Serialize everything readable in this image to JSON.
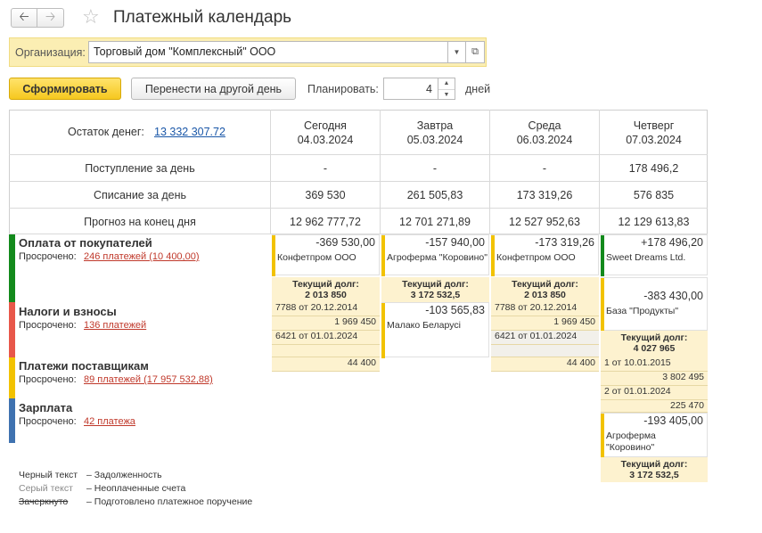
{
  "header": {
    "title": "Платежный календарь",
    "back_icon": "arrow-left-icon",
    "forward_icon": "arrow-right-icon",
    "favorite_icon": "star-icon"
  },
  "organization": {
    "label": "Организация:",
    "value": "Торговый дом \"Комплексный\" ООО"
  },
  "toolbar": {
    "generate_label": "Сформировать",
    "move_label": "Перенести на другой день",
    "plan_label": "Планировать:",
    "plan_value": "4",
    "days_label": "дней"
  },
  "summary": {
    "balance_label": "Остаток денег:",
    "balance_value": "13 332 307.72",
    "rows": [
      "Поступление за день",
      "Списание за день",
      "Прогноз на конец дня"
    ],
    "days": [
      {
        "name": "Сегодня",
        "date": "04.03.2024",
        "income": "-",
        "expense": "369 530",
        "forecast": "12 962 777,72"
      },
      {
        "name": "Завтра",
        "date": "05.03.2024",
        "income": "-",
        "expense": "261 505,83",
        "forecast": "12 701 271,89"
      },
      {
        "name": "Среда",
        "date": "06.03.2024",
        "income": "-",
        "expense": "173 319,26",
        "forecast": "12 527 952,63"
      },
      {
        "name": "Четверг",
        "date": "07.03.2024",
        "income": "178 496,2",
        "expense": "576 835",
        "forecast": "12 129 613,83"
      }
    ]
  },
  "groups": [
    {
      "title": "Оплата от покупателей",
      "overdue_label": "Просрочено:",
      "overdue_link": "246 платежей (10 400,00)",
      "color": "#138a1c"
    },
    {
      "title": "Налоги и взносы",
      "overdue_label": "Просрочено:",
      "overdue_link": "136 платежей",
      "color": "#e8574a"
    },
    {
      "title": "Платежи поставщикам",
      "overdue_label": "Просрочено:",
      "overdue_link": "89 платежей (17 957 532,88)",
      "color": "#f2c200"
    },
    {
      "title": "Зарплата",
      "overdue_label": "Просрочено:",
      "overdue_link": "42 платежа",
      "color": "#3f72b0"
    }
  ],
  "cards": {
    "c1": {
      "amount": "-369 530,00",
      "who": "Конфетпром ООО"
    },
    "c2": {
      "amount": "-157 940,00",
      "who": "Агроферма \"Коровино\""
    },
    "c3": {
      "amount": "-173 319,26",
      "who": "Конфетпром ООО"
    },
    "c4": {
      "amount": "+178 496,20",
      "who": "Sweet Dreams Ltd."
    },
    "c5": {
      "amount": "-103 565,83",
      "who": "Малако Беларусі"
    },
    "c6": {
      "amount": "-383 430,00",
      "who": "База \"Продукты\""
    },
    "c7": {
      "amount": "-193 405,00",
      "who": "Агроферма \"Коровино\""
    }
  },
  "debts": {
    "label": "Текущий долг:",
    "d1": "2 013 850",
    "d2": "3 172 532,5",
    "d3": "2 013 850",
    "d4": "4 027 965",
    "d5": "3 172 532,5"
  },
  "subs": {
    "s1": "7788 от 20.12.2014",
    "s2": "1 969 450",
    "s3": "6421 от 01.01.2024",
    "s4": "44 400",
    "s5": "7788 от 20.12.2014",
    "s6": "1 969 450",
    "s7": "6421 от 01.01.2024",
    "s8": "44 400",
    "s9": "1 от 10.01.2015",
    "s10": "3 802 495",
    "s11": "2 от 01.01.2024",
    "s12": "225 470"
  },
  "legend": [
    {
      "key": "Черный текст",
      "desc": "Задолженность"
    },
    {
      "key": "Серый текст",
      "desc": "Неоплаченные счета"
    },
    {
      "key": "Зачеркнуто",
      "desc": "Подготовлено платежное поручение"
    }
  ],
  "colors": {
    "accent_yellow": "#f6c81f",
    "stripe_yellow": "#f2c200",
    "stripe_green": "#138a1c",
    "link_blue": "#1a57a8",
    "link_red": "#c0392b"
  }
}
